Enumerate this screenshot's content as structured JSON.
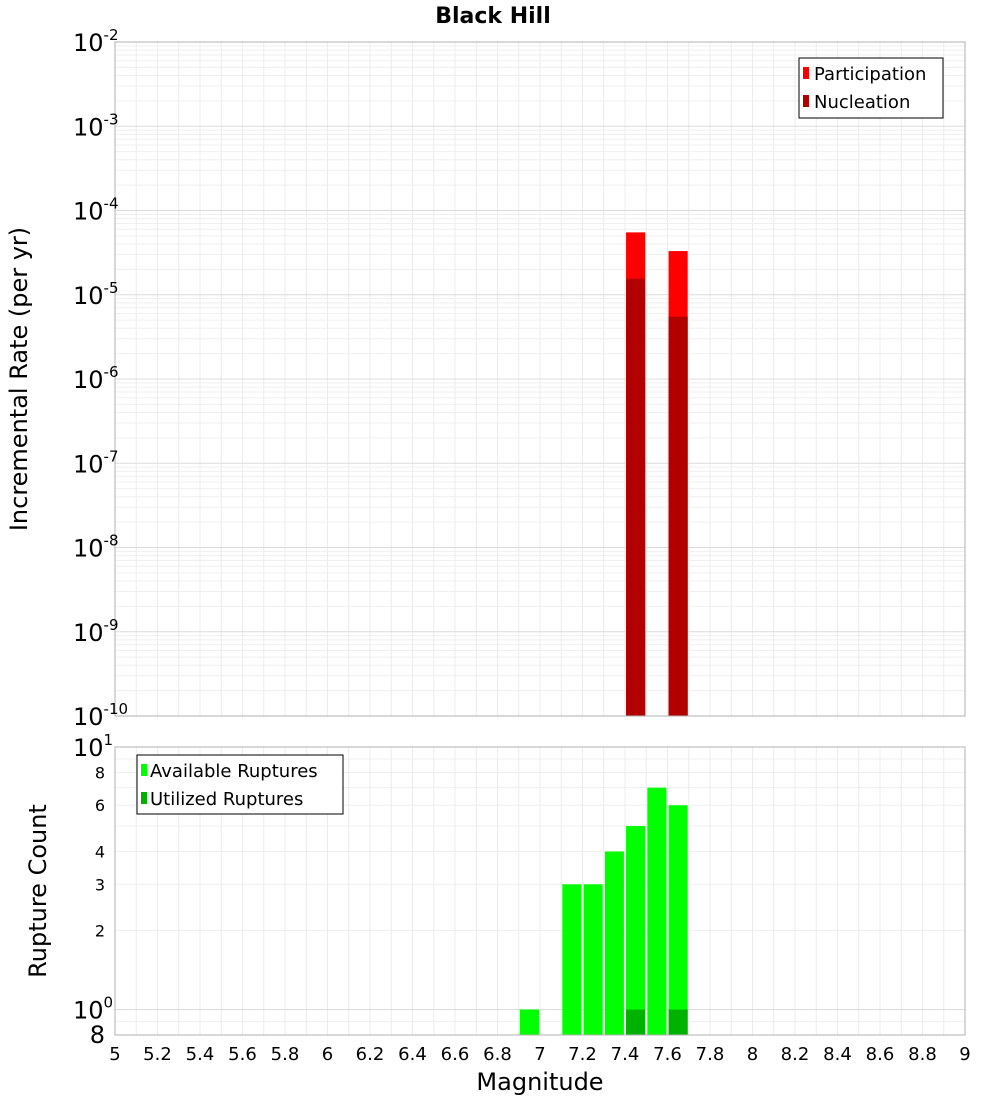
{
  "chart_data": [
    {
      "type": "bar",
      "title": "Black Hill",
      "xlabel": "",
      "ylabel": "Incremental Rate (per yr)",
      "yscale": "log",
      "xlim": [
        5,
        9
      ],
      "ylim": [
        1e-10,
        0.01
      ],
      "ytick_labels": [
        {
          "base": "10",
          "exp": "-2"
        },
        {
          "base": "10",
          "exp": "-3"
        },
        {
          "base": "10",
          "exp": "-4"
        },
        {
          "base": "10",
          "exp": "-5"
        },
        {
          "base": "10",
          "exp": "-6"
        },
        {
          "base": "10",
          "exp": "-7"
        },
        {
          "base": "10",
          "exp": "-8"
        },
        {
          "base": "10",
          "exp": "-9"
        },
        {
          "base": "10",
          "exp": "-10"
        }
      ],
      "grid": true,
      "legend_position": "top-right",
      "bar_width": 0.09,
      "series": [
        {
          "name": "Participation",
          "color": "#ff0000",
          "x": [
            7.45,
            7.65
          ],
          "values": [
            5.5e-05,
            3.3e-05
          ]
        },
        {
          "name": "Nucleation",
          "color": "#b20000",
          "x": [
            7.45,
            7.65
          ],
          "values": [
            1.55e-05,
            5.5e-06
          ]
        }
      ]
    },
    {
      "type": "bar",
      "title": "",
      "xlabel": "Magnitude",
      "ylabel": "Rupture Count",
      "yscale": "log",
      "xlim": [
        5,
        9
      ],
      "ylim": [
        0.8,
        10
      ],
      "ytick_labels": [
        {
          "base": "10",
          "exp": "1"
        },
        {
          "base": "8",
          "exp": ""
        },
        {
          "base": "6",
          "exp": ""
        },
        {
          "base": "4",
          "exp": ""
        },
        {
          "base": "3",
          "exp": ""
        },
        {
          "base": "2",
          "exp": ""
        },
        {
          "base": "10",
          "exp": "0"
        },
        {
          "base": "8",
          "exp": ""
        }
      ],
      "xticks": [
        "5",
        "5.2",
        "5.4",
        "5.6",
        "5.8",
        "6",
        "6.2",
        "6.4",
        "6.6",
        "6.8",
        "7",
        "7.2",
        "7.4",
        "7.6",
        "7.8",
        "8",
        "8.2",
        "8.4",
        "8.6",
        "8.8",
        "9"
      ],
      "grid": true,
      "legend_position": "top-left",
      "bar_width": 0.09,
      "series": [
        {
          "name": "Available Ruptures",
          "color": "#00ff00",
          "x": [
            6.95,
            7.15,
            7.25,
            7.35,
            7.45,
            7.55,
            7.65
          ],
          "values": [
            1,
            3,
            3,
            4,
            5,
            7,
            6
          ]
        },
        {
          "name": "Utilized Ruptures",
          "color": "#00b200",
          "x": [
            7.45,
            7.65
          ],
          "values": [
            1,
            1
          ]
        }
      ]
    }
  ]
}
